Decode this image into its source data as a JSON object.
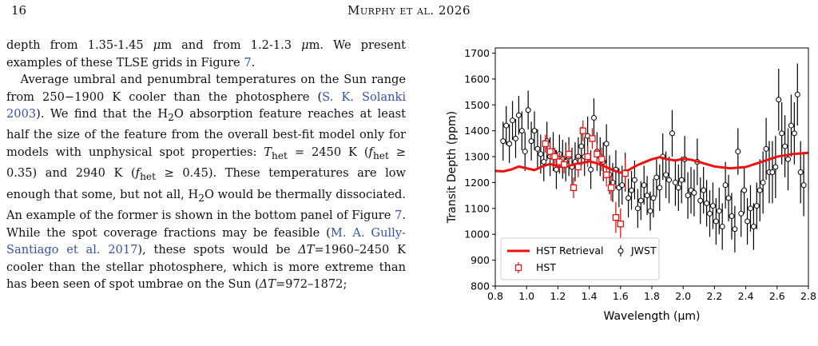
{
  "header": {
    "page_number": "16",
    "running_head": "Murphy et al. 2026"
  },
  "body": {
    "p1": [
      {
        "t": "depth from 1.35-1.45 "
      },
      {
        "t": "μ",
        "i": true
      },
      {
        "t": "m and from 1.2-1.3 "
      },
      {
        "t": "μ",
        "i": true
      },
      {
        "t": "m.  We present examples of these TLSE grids in Figure "
      },
      {
        "t": "7",
        "c": true
      },
      {
        "t": "."
      }
    ],
    "p2": [
      {
        "t": "Average umbral and penumbral temperatures on the Sun range from 250−1900 K cooler than the photosphere ("
      },
      {
        "t": "S. K. Solanki 2003",
        "c": true
      },
      {
        "t": ").  We find that the H"
      },
      {
        "t": "2",
        "sub": true
      },
      {
        "t": "O absorption feature reaches at least half the size of the feature from the overall best-fit model only for models with unphysical spot properties: "
      },
      {
        "t": "T",
        "i": true
      },
      {
        "t": "het",
        "sub": true
      },
      {
        "t": " = 2450 K ("
      },
      {
        "t": "f",
        "i": true
      },
      {
        "t": "het",
        "sub": true
      },
      {
        "t": " ≥ 0.35) and 2940 K ("
      },
      {
        "t": "f",
        "i": true
      },
      {
        "t": "het",
        "sub": true
      },
      {
        "t": " ≥ 0.45).  These temperatures are low enough that some, but not all, H"
      },
      {
        "t": "2",
        "sub": true
      },
      {
        "t": "O would be thermally dissociated.  An example of the former is shown in the bottom panel of Figure "
      },
      {
        "t": "7",
        "c": true
      },
      {
        "t": ".  While the spot coverage fractions may be feasible ("
      },
      {
        "t": "M. A. Gully-Santiago et al. 2017",
        "c": true
      },
      {
        "t": "), these spots would be "
      },
      {
        "t": "ΔT",
        "i": true
      },
      {
        "t": "=1960–2450 K cooler than the stellar photosphere, which is more extreme than has been seen of spot umbrae on the Sun ("
      },
      {
        "t": "ΔT",
        "i": true
      },
      {
        "t": "=972–1872;"
      }
    ]
  },
  "chart_data": {
    "type": "scatter",
    "xlabel": "Wavelength (μm)",
    "ylabel": "Transit Depth (ppm)",
    "xlim": [
      0.8,
      2.8
    ],
    "ylim": [
      800,
      1720
    ],
    "xticks": [
      0.8,
      1.0,
      1.2,
      1.4,
      1.6,
      1.8,
      2.0,
      2.2,
      2.4,
      2.6,
      2.8
    ],
    "yticks": [
      800,
      900,
      1000,
      1100,
      1200,
      1300,
      1400,
      1500,
      1600,
      1700
    ],
    "legend": {
      "placement": "lower-left",
      "entries": [
        "HST Retrieval",
        "HST",
        "JWST"
      ]
    },
    "colors": {
      "hst": "#ee1111",
      "jwst": "#000000"
    },
    "series": [
      {
        "name": "HST Retrieval",
        "kind": "line",
        "x": [
          0.8,
          0.85,
          0.9,
          0.95,
          1.0,
          1.05,
          1.1,
          1.15,
          1.2,
          1.25,
          1.3,
          1.35,
          1.4,
          1.45,
          1.5,
          1.55,
          1.6,
          1.65,
          1.7,
          1.75,
          1.8,
          1.85,
          1.9,
          1.95,
          2.0,
          2.05,
          2.1,
          2.2,
          2.3,
          2.4,
          2.5,
          2.6,
          2.7,
          2.8
        ],
        "y": [
          1245,
          1243,
          1250,
          1262,
          1255,
          1248,
          1262,
          1272,
          1262,
          1260,
          1270,
          1275,
          1282,
          1274,
          1262,
          1248,
          1238,
          1248,
          1265,
          1278,
          1290,
          1298,
          1290,
          1285,
          1292,
          1288,
          1280,
          1262,
          1255,
          1260,
          1280,
          1300,
          1310,
          1315
        ]
      },
      {
        "name": "HST",
        "kind": "errorbar",
        "x": [
          1.12,
          1.15,
          1.18,
          1.21,
          1.24,
          1.27,
          1.3,
          1.33,
          1.36,
          1.39,
          1.42,
          1.45,
          1.48,
          1.51,
          1.54,
          1.57,
          1.6,
          1.63
        ],
        "y": [
          1350,
          1320,
          1300,
          1280,
          1270,
          1310,
          1180,
          1260,
          1400,
          1300,
          1370,
          1310,
          1290,
          1230,
          1180,
          1065,
          1040,
          1235
        ],
        "err": [
          35,
          35,
          35,
          35,
          35,
          35,
          40,
          40,
          40,
          40,
          40,
          40,
          45,
          45,
          50,
          60,
          60,
          60
        ]
      },
      {
        "name": "JWST",
        "kind": "errorbar",
        "x": [
          0.85,
          0.87,
          0.89,
          0.91,
          0.93,
          0.95,
          0.97,
          0.99,
          1.01,
          1.03,
          1.05,
          1.07,
          1.09,
          1.11,
          1.13,
          1.15,
          1.17,
          1.19,
          1.21,
          1.23,
          1.25,
          1.27,
          1.29,
          1.31,
          1.33,
          1.35,
          1.37,
          1.39,
          1.41,
          1.43,
          1.45,
          1.47,
          1.49,
          1.51,
          1.53,
          1.55,
          1.57,
          1.59,
          1.61,
          1.63,
          1.65,
          1.67,
          1.69,
          1.71,
          1.73,
          1.75,
          1.77,
          1.79,
          1.81,
          1.83,
          1.85,
          1.87,
          1.89,
          1.91,
          1.93,
          1.95,
          1.97,
          1.99,
          2.01,
          2.03,
          2.05,
          2.07,
          2.09,
          2.11,
          2.13,
          2.15,
          2.17,
          2.19,
          2.21,
          2.23,
          2.25,
          2.27,
          2.29,
          2.31,
          2.33,
          2.35,
          2.37,
          2.39,
          2.41,
          2.43,
          2.45,
          2.47,
          2.49,
          2.51,
          2.53,
          2.55,
          2.57,
          2.59,
          2.61,
          2.63,
          2.65,
          2.67,
          2.69,
          2.71,
          2.73,
          2.75,
          2.77
        ],
        "y": [
          1360,
          1420,
          1350,
          1440,
          1370,
          1460,
          1400,
          1320,
          1480,
          1360,
          1400,
          1330,
          1310,
          1280,
          1360,
          1300,
          1320,
          1250,
          1310,
          1290,
          1280,
          1300,
          1260,
          1280,
          1300,
          1340,
          1300,
          1380,
          1250,
          1450,
          1320,
          1300,
          1280,
          1350,
          1230,
          1200,
          1250,
          1180,
          1190,
          1240,
          1140,
          1170,
          1210,
          1100,
          1130,
          1190,
          1150,
          1090,
          1140,
          1220,
          1180,
          1300,
          1230,
          1210,
          1390,
          1200,
          1180,
          1210,
          1290,
          1150,
          1170,
          1160,
          1280,
          1130,
          1170,
          1120,
          1080,
          1110,
          1050,
          1090,
          1030,
          1190,
          1140,
          1070,
          1020,
          1320,
          1080,
          1170,
          1050,
          1100,
          1030,
          1110,
          1170,
          1200,
          1330,
          1240,
          1240,
          1260,
          1520,
          1390,
          1340,
          1290,
          1420,
          1390,
          1540,
          1240,
          1190
        ],
        "err": [
          75,
          75,
          75,
          75,
          75,
          75,
          75,
          75,
          75,
          75,
          75,
          75,
          75,
          75,
          75,
          75,
          75,
          75,
          75,
          75,
          75,
          75,
          75,
          75,
          75,
          75,
          75,
          75,
          75,
          75,
          75,
          75,
          75,
          75,
          75,
          75,
          75,
          75,
          75,
          75,
          75,
          75,
          75,
          75,
          75,
          75,
          75,
          75,
          75,
          75,
          90,
          90,
          90,
          90,
          90,
          90,
          90,
          90,
          90,
          90,
          90,
          90,
          90,
          90,
          90,
          90,
          90,
          90,
          90,
          90,
          90,
          90,
          90,
          90,
          90,
          90,
          90,
          90,
          90,
          90,
          90,
          90,
          120,
          120,
          120,
          120,
          120,
          120,
          120,
          120,
          120,
          120,
          120,
          120,
          120,
          120,
          120
        ]
      }
    ]
  }
}
